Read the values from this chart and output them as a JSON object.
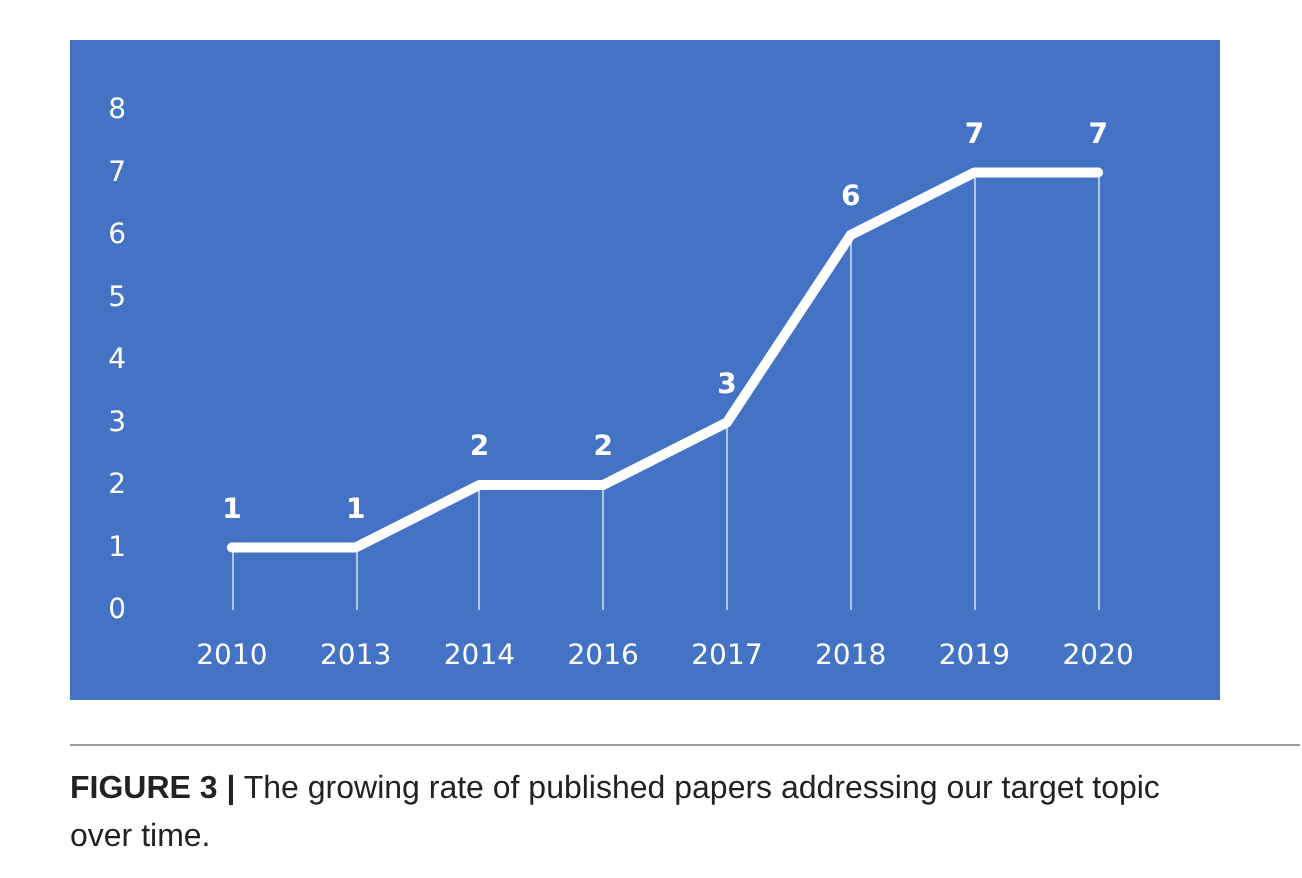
{
  "chart_data": {
    "type": "line",
    "categories": [
      "2010",
      "2013",
      "2014",
      "2016",
      "2017",
      "2018",
      "2019",
      "2020"
    ],
    "series": [
      {
        "color": "#ffffff",
        "values": [
          1,
          1,
          2,
          2,
          3,
          6,
          7,
          7
        ]
      }
    ],
    "ylim": [
      0,
      8
    ],
    "yticks": [
      0,
      1,
      2,
      3,
      4,
      5,
      6,
      7,
      8
    ],
    "grid": "x",
    "marker": "none",
    "line_style": "solid",
    "data_labels": true,
    "annotations": [
      "FIGURE 3 | The growing rate of published papers addressing our target topic over time."
    ]
  }
}
